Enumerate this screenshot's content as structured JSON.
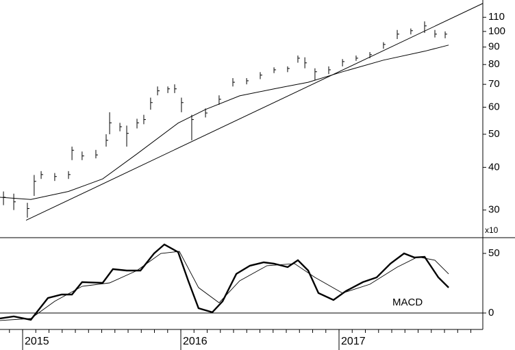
{
  "chart_data": [
    {
      "type": "ohlc",
      "log": true,
      "xlim": [
        2014.857,
        2017.909
      ],
      "ylim": [
        24.9,
        123.6
      ],
      "yticks": [
        30,
        40,
        50,
        60,
        70,
        80,
        90,
        100,
        110
      ],
      "annotation": "x10",
      "x": [
        2014.879,
        2014.944,
        2015.03,
        2015.073,
        2015.117,
        2015.203,
        2015.29,
        2015.312,
        2015.376,
        2015.463,
        2015.528,
        2015.55,
        2015.615,
        2015.658,
        2015.723,
        2015.766,
        2015.809,
        2015.853,
        2015.918,
        2015.961,
        2016.004,
        2016.069,
        2016.156,
        2016.242,
        2016.329,
        2016.416,
        2016.502,
        2016.589,
        2016.675,
        2016.74,
        2016.784,
        2016.848,
        2016.935,
        2017.022,
        2017.108,
        2017.195,
        2017.281,
        2017.368,
        2017.454,
        2017.541,
        2017.606,
        2017.671
      ],
      "high": [
        34,
        33.5,
        31.5,
        38,
        39,
        38.5,
        39,
        46,
        44.5,
        45,
        50,
        58,
        54,
        53,
        55.5,
        57,
        64,
        69,
        69,
        70,
        64,
        57,
        59.5,
        65,
        73,
        73,
        76,
        78.5,
        79,
        85,
        84,
        78,
        79,
        83,
        85,
        87,
        93,
        101,
        102,
        107,
        101,
        100
      ],
      "low": [
        31,
        30,
        28.5,
        33,
        37,
        36.5,
        37,
        42,
        42,
        42.5,
        46,
        50,
        51,
        46,
        52,
        53.5,
        59,
        65,
        66,
        66,
        58,
        48,
        56,
        61,
        69,
        70,
        72.5,
        75.5,
        76,
        81,
        78,
        72,
        75,
        79,
        82,
        83.5,
        89,
        95,
        98,
        99,
        96,
        95.5
      ],
      "close": [
        32.7,
        31.7,
        30.3,
        36.4,
        38.1,
        37.6,
        38.1,
        44.9,
        43.2,
        43.5,
        48,
        54,
        52.6,
        50.3,
        54,
        55.2,
        61.9,
        67,
        67.9,
        67.9,
        61.9,
        55.2,
        57.7,
        63.3,
        71,
        71.7,
        74.5,
        77.2,
        77.9,
        83.5,
        80.9,
        76.2,
        77.2,
        81.6,
        83.5,
        85.5,
        91.6,
        98.2,
        100.5,
        103.8,
        98.2,
        98.2
      ],
      "color": "#000000",
      "series": [
        {
          "color": "#000000",
          "x": [
            2014.857,
            2015.052,
            2015.29,
            2015.506,
            2015.723,
            2015.983,
            2016.156,
            2016.372,
            2016.589,
            2016.805,
            2017.022,
            2017.281,
            2017.541,
            2017.693
          ],
          "values": [
            32.7,
            32.2,
            34,
            37,
            43.8,
            53.9,
            59.1,
            64.8,
            67.9,
            71,
            76.2,
            82.4,
            87.5,
            91.2
          ]
        },
        {
          "color": "#000000",
          "x": [
            2015.022,
            2017.909
          ],
          "values": [
            28,
            120.8
          ]
        }
      ]
    },
    {
      "type": "line",
      "xlim": [
        2014.857,
        2017.909
      ],
      "xticks": [
        2015,
        2016,
        2017
      ],
      "ylim": [
        -13.8,
        63.2
      ],
      "yticks": [
        0,
        50
      ],
      "zero_line": true,
      "annotation": "MACD",
      "series": [
        {
          "color": "#000000",
          "width": 2.4,
          "x": [
            2014.857,
            2014.944,
            2015.052,
            2015.16,
            2015.247,
            2015.312,
            2015.376,
            2015.506,
            2015.571,
            2015.658,
            2015.745,
            2015.831,
            2015.896,
            2015.983,
            2016.047,
            2016.112,
            2016.199,
            2016.264,
            2016.351,
            2016.437,
            2016.524,
            2016.589,
            2016.675,
            2016.74,
            2016.805,
            2016.87,
            2016.965,
            2017.043,
            2017.151,
            2017.238,
            2017.325,
            2017.411,
            2017.476,
            2017.541,
            2017.628,
            2017.693
          ],
          "values": [
            -4.6,
            -2.9,
            -5.7,
            12.6,
            15.5,
            15.5,
            25.9,
            25.3,
            36.8,
            35.6,
            35.6,
            50,
            57.5,
            51.1,
            27,
            4,
            0.6,
            9.8,
            32.8,
            39.7,
            42.5,
            41.4,
            38.5,
            44.3,
            35.6,
            16.7,
            10.9,
            18.4,
            25.9,
            29.9,
            41.4,
            50,
            46.6,
            47.1,
            29.9,
            21.3
          ]
        },
        {
          "color": "#000000",
          "width": 0.9,
          "x": [
            2014.857,
            2015.052,
            2015.203,
            2015.376,
            2015.55,
            2015.723,
            2015.874,
            2015.991,
            2016.112,
            2016.242,
            2016.372,
            2016.545,
            2016.719,
            2016.848,
            2017.022,
            2017.195,
            2017.368,
            2017.498,
            2017.606,
            2017.693
          ],
          "values": [
            -6.3,
            -4.6,
            9.8,
            22.4,
            25.3,
            35.6,
            50,
            51.7,
            21.3,
            8.6,
            27,
            39.7,
            41.4,
            29.9,
            16.7,
            24.1,
            38.5,
            47.1,
            44.3,
            32.8
          ]
        }
      ]
    }
  ]
}
